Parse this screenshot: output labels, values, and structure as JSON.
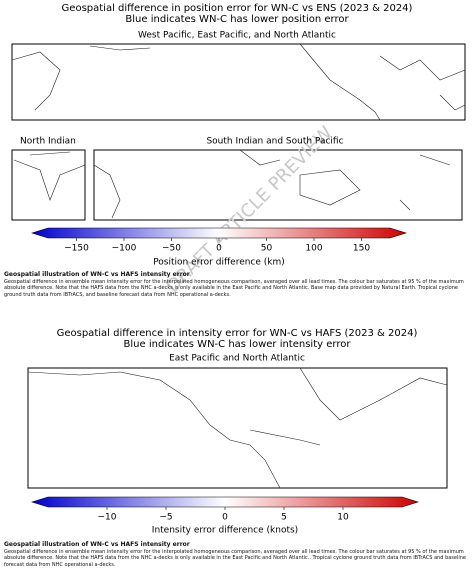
{
  "watermark": "DRAFT ARTICLE PREVIEW",
  "figures": [
    {
      "title": [
        "Geospatial difference in position error for WN-C vs ENS (2023 & 2024)",
        "Blue indicates WN-C has lower position error"
      ],
      "panels": [
        "West Pacific, East Pacific, and North Atlantic",
        "North Indian",
        "South Indian and South Pacific"
      ],
      "colorbar": {
        "label": "Position error difference (km)",
        "lim": [
          -180,
          180
        ],
        "ticks": [
          {
            "value": -150,
            "label": "−150"
          },
          {
            "value": -100,
            "label": "−100"
          },
          {
            "value": -50,
            "label": "−50"
          },
          0,
          50,
          100,
          150
        ],
        "colors": [
          "#0000d0",
          "#ffffff",
          "#d00000"
        ]
      },
      "caption": {
        "title": "Geospatial illustration of WN-C vs HAFS intensity error",
        "text": "Geospatial difference in ensemble mean intensity error for the interpolated homogeneous comparison, averaged over all lead times. The colour bar saturates at 95 % of the maximum absolute difference. Note that the HAFS data from the NHC a-decks is only available in the East Pacific and North Atlantic. Base map data provided by Natural Earth. Tropical cyclone ground truth data from IBTrACS, and baseline forecast data from NHC operational a-decks."
      }
    },
    {
      "title": [
        "Geospatial difference in intensity error for WN-C vs HAFS (2023 & 2024)",
        "Blue indicates WN-C has lower intensity error"
      ],
      "panels": [
        "East Pacific and North Atlantic"
      ],
      "colorbar": {
        "label": "Intensity error difference (knots)",
        "lim": [
          -15,
          15
        ],
        "ticks": [
          {
            "value": -10,
            "label": "−10"
          },
          {
            "value": -5,
            "label": "−5"
          },
          0,
          5,
          10
        ],
        "colors": [
          "#0000d0",
          "#ffffff",
          "#d00000"
        ]
      },
      "caption": {
        "title": "Geospatial illustration of WN-C vs HAFS intensity error",
        "text": "Geospatial difference in ensemble mean intensity error for the interpolated homogeneous comparison, averaged over all lead times. The colour bar saturates at 95 % of the maximum absolute difference. Note that the HAFS data from the NHC a-decks is only available in the East Pacific and North Atlantic.. Tropical cyclone ground truth data from IBTrACS and baseline forecast data from NHC operational a-decks."
      }
    }
  ]
}
